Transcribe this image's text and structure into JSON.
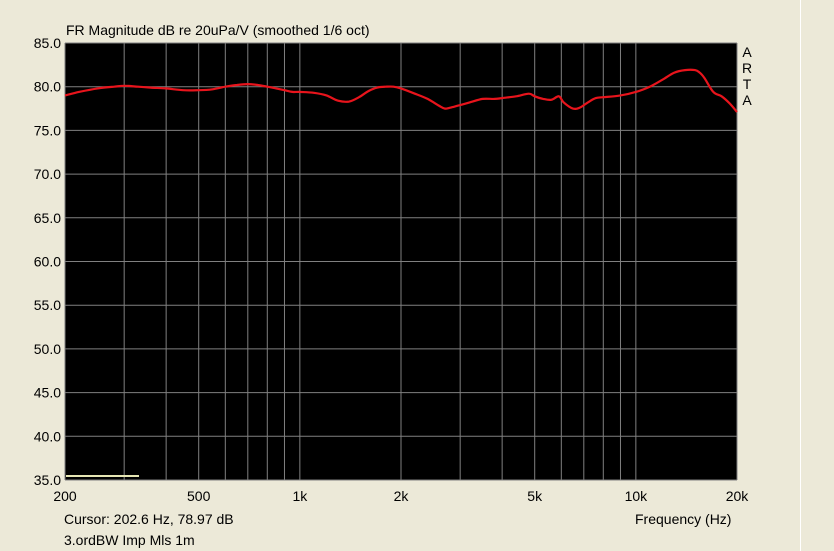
{
  "window": {
    "title": "FR Magnitude dB re 20uPa/V (smoothed 1/6 oct)",
    "cursor_readout": "Cursor: 202.6 Hz, 78.97 dB",
    "measurement_name": "3.ordBW Imp Mls 1m",
    "brand_letters": [
      "A",
      "R",
      "T",
      "A"
    ]
  },
  "colors": {
    "background": "#ece9d8",
    "plot_background": "#000000",
    "grid": "#808080",
    "trace": "#e8141c",
    "cursor_marker": "#e6e6b4"
  },
  "chart_data": {
    "type": "line",
    "title": "FR Magnitude dB re 20uPa/V (smoothed 1/6 oct)",
    "xlabel": "Frequency (Hz)",
    "ylabel": "",
    "x_scale": "log",
    "xlim": [
      200,
      20000
    ],
    "ylim": [
      35,
      85
    ],
    "grid": true,
    "x_ticks": [
      200,
      500,
      1000,
      2000,
      5000,
      10000,
      20000
    ],
    "x_tick_labels": [
      "200",
      "500",
      "1k",
      "2k",
      "5k",
      "10k",
      "20k"
    ],
    "y_ticks": [
      35,
      40,
      45,
      50,
      55,
      60,
      65,
      70,
      75,
      80,
      85
    ],
    "y_tick_labels": [
      "35.0",
      "40.0",
      "45.0",
      "50.0",
      "55.0",
      "60.0",
      "65.0",
      "70.0",
      "75.0",
      "80.0",
      "85.0"
    ],
    "series": [
      {
        "x": [
          200,
          220,
          250,
          280,
          300,
          330,
          360,
          400,
          450,
          500,
          550,
          600,
          650,
          700,
          750,
          800,
          850,
          900,
          950,
          1000,
          1100,
          1200,
          1300,
          1400,
          1500,
          1600,
          1700,
          1800,
          1900,
          2000,
          2200,
          2400,
          2600,
          2700,
          2800,
          3000,
          3200,
          3500,
          3800,
          4000,
          4400,
          4800,
          5000,
          5300,
          5600,
          5900,
          6100,
          6500,
          6800,
          7200,
          7600,
          8000,
          9000,
          10000,
          11000,
          12000,
          13000,
          14000,
          15000,
          15500,
          16000,
          17000,
          18000,
          19000,
          20000
        ],
        "y": [
          79.0,
          79.4,
          79.8,
          80.0,
          80.1,
          80.0,
          79.9,
          79.8,
          79.6,
          79.6,
          79.7,
          80.0,
          80.2,
          80.3,
          80.2,
          80.0,
          79.8,
          79.6,
          79.4,
          79.4,
          79.3,
          79.0,
          78.4,
          78.3,
          78.8,
          79.5,
          79.9,
          80.0,
          80.0,
          79.8,
          79.2,
          78.6,
          77.8,
          77.5,
          77.6,
          77.9,
          78.2,
          78.6,
          78.6,
          78.7,
          78.9,
          79.2,
          78.9,
          78.6,
          78.5,
          78.9,
          78.2,
          77.5,
          77.6,
          78.2,
          78.7,
          78.8,
          79.0,
          79.4,
          80.0,
          80.8,
          81.6,
          81.9,
          81.9,
          81.6,
          81.0,
          79.4,
          78.9,
          78.1,
          77.1
        ]
      }
    ],
    "cursor": {
      "frequency_hz": 202.6,
      "level_db": 78.97
    }
  }
}
